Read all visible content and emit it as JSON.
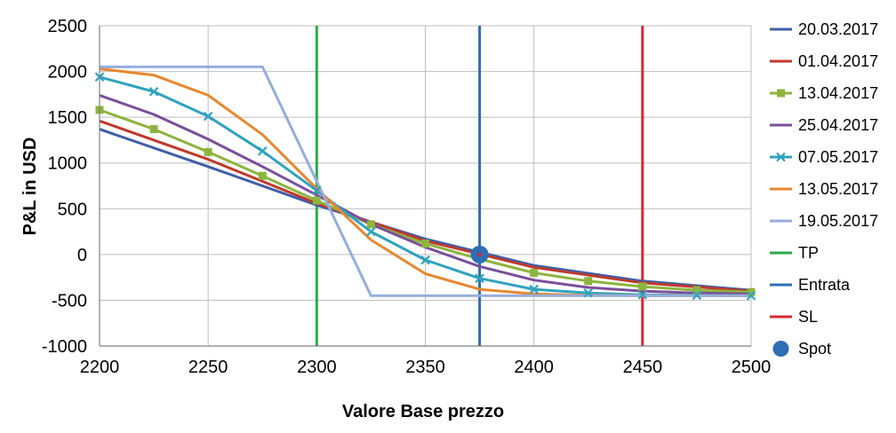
{
  "chart_data": {
    "type": "line",
    "xlabel": "Valore Base prezzo",
    "ylabel": "P&L in USD",
    "xlim": [
      2200,
      2500
    ],
    "ylim": [
      -1000,
      2500
    ],
    "x_ticks": [
      2200,
      2250,
      2300,
      2350,
      2400,
      2450,
      2500
    ],
    "y_ticks": [
      2500,
      2000,
      1500,
      1000,
      500,
      0,
      -500,
      -1000
    ],
    "grid": "both",
    "legend_position": "right",
    "series": [
      {
        "name": "20.03.2017",
        "color": "#3e5fa8",
        "marker": "none",
        "x": [
          2200,
          2250,
          2300,
          2350,
          2400,
          2450,
          2500
        ],
        "y": [
          1370,
          960,
          540,
          170,
          -120,
          -290,
          -390
        ]
      },
      {
        "name": "01.04.2017",
        "color": "#c0392b",
        "marker": "none",
        "x": [
          2200,
          2250,
          2300,
          2350,
          2400,
          2450,
          2500
        ],
        "y": [
          1460,
          1040,
          560,
          150,
          -140,
          -310,
          -400
        ]
      },
      {
        "name": "13.04.2017",
        "color": "#8db43e",
        "marker": "square",
        "x": [
          2200,
          2225,
          2250,
          2275,
          2300,
          2325,
          2350,
          2375,
          2400,
          2425,
          2450,
          2475,
          2500
        ],
        "y": [
          1580,
          1370,
          1120,
          860,
          590,
          330,
          120,
          -50,
          -200,
          -290,
          -350,
          -390,
          -410
        ]
      },
      {
        "name": "25.04.2017",
        "color": "#7a4f9a",
        "marker": "none",
        "x": [
          2200,
          2225,
          2250,
          2275,
          2300,
          2325,
          2350,
          2375,
          2400,
          2425,
          2450,
          2475,
          2500
        ],
        "y": [
          1740,
          1530,
          1260,
          960,
          650,
          330,
          80,
          -130,
          -280,
          -360,
          -400,
          -420,
          -430
        ]
      },
      {
        "name": "07.05.2017",
        "color": "#2ea3bf",
        "marker": "x",
        "x": [
          2200,
          2225,
          2250,
          2275,
          2300,
          2325,
          2350,
          2375,
          2400,
          2425,
          2450,
          2475,
          2500
        ],
        "y": [
          1940,
          1780,
          1510,
          1130,
          700,
          250,
          -60,
          -260,
          -380,
          -420,
          -440,
          -445,
          -450
        ]
      },
      {
        "name": "13.05.2017",
        "color": "#e8872e",
        "marker": "none",
        "x": [
          2200,
          2225,
          2250,
          2275,
          2300,
          2325,
          2350,
          2375,
          2400,
          2425,
          2450,
          2475,
          2500
        ],
        "y": [
          2030,
          1960,
          1740,
          1310,
          720,
          160,
          -210,
          -380,
          -430,
          -445,
          -450,
          -450,
          -450
        ]
      },
      {
        "name": "19.05.2017",
        "color": "#95aedc",
        "marker": "none",
        "x": [
          2200,
          2275,
          2325,
          2500
        ],
        "y": [
          2050,
          2050,
          -450,
          -450
        ]
      }
    ],
    "vertical_lines": [
      {
        "name": "TP",
        "x": 2300,
        "color": "#2eaa4a"
      },
      {
        "name": "Entrata",
        "x": 2375,
        "color": "#2f6db5"
      },
      {
        "name": "SL",
        "x": 2450,
        "color": "#d9282e"
      }
    ],
    "spot": {
      "name": "Spot",
      "x": 2375,
      "y": 0,
      "color": "#2f6db5"
    }
  }
}
